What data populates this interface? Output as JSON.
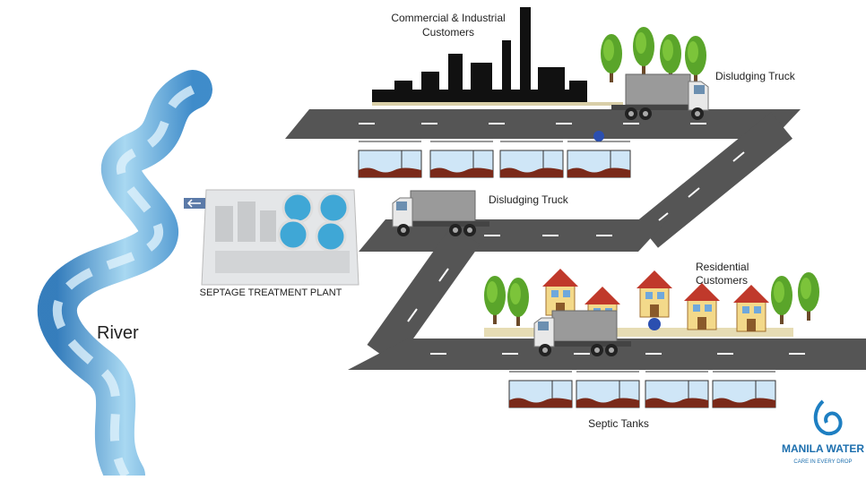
{
  "labels": {
    "commercial_customers": [
      "Commercial & Industrial",
      "Customers"
    ],
    "truck_top": "Disludging Truck",
    "truck_middle": "Disludging Truck",
    "treatment_plant": "SEPTAGE TREATMENT PLANT",
    "river": "River",
    "residential_customers": [
      "Residential",
      "Customers"
    ],
    "septic_tanks": "Septic Tanks"
  },
  "logo": {
    "name": "MANILA WATER",
    "tagline": "CARE IN EVERY DROP"
  }
}
